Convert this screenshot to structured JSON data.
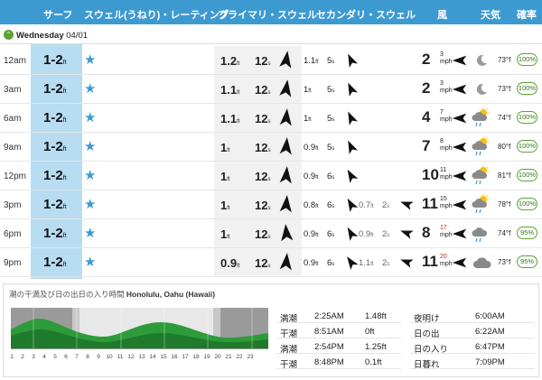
{
  "header": {
    "surf": "サーフ",
    "rating": "スウェル(うねり)・レーティング",
    "primary": "プライマリ・スウェル",
    "secondary": "セカンダリ・スウェル",
    "wind": "風",
    "weather": "天気",
    "prob": "確率"
  },
  "day": {
    "name": "Wednesday",
    "date": "04/01",
    "toggle_icon": "chevron-up-icon"
  },
  "colors": {
    "header_bg": "#3d9ad1",
    "surf_bg": "#b8dcf2",
    "green": "#5aa532",
    "wind_red": "#cc2222"
  },
  "rows": [
    {
      "time": "12am",
      "surf": "1-2",
      "surf_unit": "ft",
      "stars": "★",
      "p_h": "1.2",
      "p_p": "12",
      "s_h": "1.1",
      "s_p": "5",
      "t_h": "",
      "t_p": "",
      "wind": "2",
      "gust": "3",
      "wind_unit": "mph",
      "gust_red": false,
      "weather_icon": "moon-icon",
      "temp": "73",
      "prob": "100%"
    },
    {
      "time": "3am",
      "surf": "1-2",
      "surf_unit": "ft",
      "stars": "★",
      "p_h": "1.1",
      "p_p": "12",
      "s_h": "1",
      "s_p": "5",
      "t_h": "",
      "t_p": "",
      "wind": "2",
      "gust": "3",
      "wind_unit": "mph",
      "gust_red": false,
      "weather_icon": "moon-icon",
      "temp": "73",
      "prob": "100%"
    },
    {
      "time": "6am",
      "surf": "1-2",
      "surf_unit": "ft",
      "stars": "★",
      "p_h": "1.1",
      "p_p": "12",
      "s_h": "1",
      "s_p": "5",
      "t_h": "",
      "t_p": "",
      "wind": "4",
      "gust": "7",
      "wind_unit": "mph",
      "gust_red": false,
      "weather_icon": "sun-cloud-rain-icon",
      "temp": "74",
      "prob": "100%"
    },
    {
      "time": "9am",
      "surf": "1-2",
      "surf_unit": "ft",
      "stars": "★",
      "p_h": "1",
      "p_p": "12",
      "s_h": "0.9",
      "s_p": "5",
      "t_h": "",
      "t_p": "",
      "wind": "7",
      "gust": "8",
      "wind_unit": "mph",
      "gust_red": false,
      "weather_icon": "sun-cloud-rain-icon",
      "temp": "80",
      "prob": "100%"
    },
    {
      "time": "12pm",
      "surf": "1-2",
      "surf_unit": "ft",
      "stars": "★",
      "p_h": "1",
      "p_p": "12",
      "s_h": "0.9",
      "s_p": "6",
      "t_h": "",
      "t_p": "",
      "wind": "10",
      "gust": "11",
      "wind_unit": "mph",
      "gust_red": false,
      "weather_icon": "sun-cloud-rain-icon",
      "temp": "81",
      "prob": "100%"
    },
    {
      "time": "3pm",
      "surf": "1-2",
      "surf_unit": "ft",
      "stars": "★",
      "p_h": "1",
      "p_p": "12",
      "s_h": "0.8",
      "s_p": "6",
      "t_h": "0.7",
      "t_p": "2",
      "wind": "11",
      "gust": "15",
      "wind_unit": "mph",
      "gust_red": false,
      "weather_icon": "sun-cloud-rain-icon",
      "temp": "78",
      "prob": "100%"
    },
    {
      "time": "6pm",
      "surf": "1-2",
      "surf_unit": "ft",
      "stars": "★",
      "p_h": "1",
      "p_p": "12",
      "s_h": "0.9",
      "s_p": "6",
      "t_h": "0.9",
      "t_p": "2",
      "wind": "8",
      "gust": "17",
      "wind_unit": "mph",
      "gust_red": true,
      "weather_icon": "cloud-rain-icon",
      "temp": "74",
      "prob": "95%"
    },
    {
      "time": "9pm",
      "surf": "1-2",
      "surf_unit": "ft",
      "stars": "★",
      "p_h": "0.9",
      "p_p": "12",
      "s_h": "0.9",
      "s_p": "6",
      "t_h": "1.1",
      "t_p": "2",
      "wind": "11",
      "gust": "20",
      "wind_unit": "mph",
      "gust_red": true,
      "weather_icon": "cloud-icon",
      "temp": "73",
      "prob": "95%"
    }
  ],
  "units": {
    "ft": "ft",
    "s": "s",
    "temp": "°f"
  },
  "tide": {
    "title": "潮の干満及び日の出日の入り時間",
    "location": "Honolulu, Oahu (Hawaii)",
    "tides": [
      {
        "type": "満潮",
        "time": "2:25AM",
        "height": "1.48ft"
      },
      {
        "type": "干潮",
        "time": "8:51AM",
        "height": "0ft"
      },
      {
        "type": "満潮",
        "time": "2:54PM",
        "height": "1.25ft"
      },
      {
        "type": "干潮",
        "time": "8:48PM",
        "height": "0.1ft"
      }
    ],
    "sun": [
      {
        "label": "夜明け",
        "time": "6:00AM"
      },
      {
        "label": "日の出",
        "time": "6:22AM"
      },
      {
        "label": "日の入り",
        "time": "6:47PM"
      },
      {
        "label": "日暮れ",
        "time": "7:09PM"
      }
    ],
    "hours": [
      "1",
      "2",
      "3",
      "4",
      "5",
      "6",
      "7",
      "8",
      "9",
      "10",
      "11",
      "12",
      "13",
      "14",
      "15",
      "16",
      "17",
      "18",
      "19",
      "20",
      "21",
      "22",
      "23"
    ]
  }
}
